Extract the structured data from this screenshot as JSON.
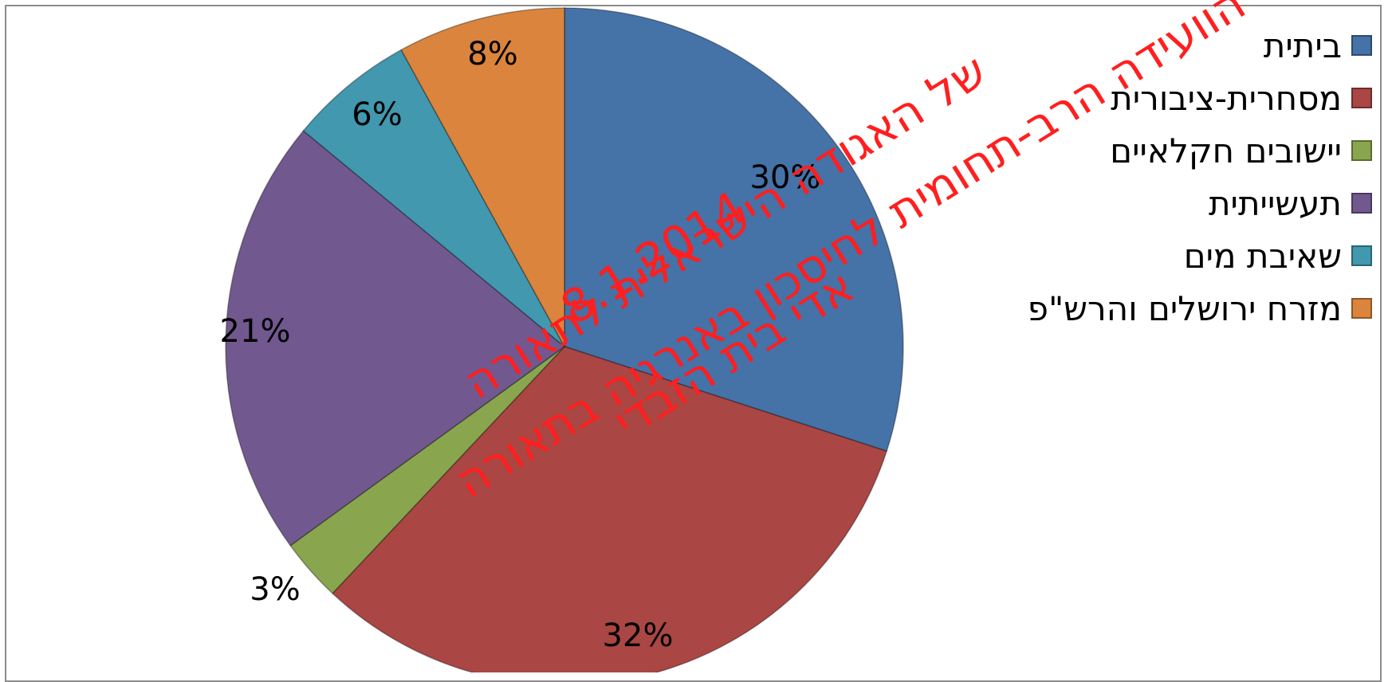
{
  "chart_data": {
    "type": "pie",
    "categories": [
      "ביתית",
      "מסחרית-ציבורית",
      "יישובים חקלאיים",
      "תעשייתית",
      "שאיבת מים",
      "מזרח ירושלים והרש\"פ"
    ],
    "values": [
      30,
      32,
      3,
      21,
      6,
      8
    ],
    "labels": [
      "30%",
      "32%",
      "3%",
      "21%",
      "6%",
      "8%"
    ],
    "colors": [
      "#4572A7",
      "#AA4643",
      "#89A54E",
      "#71588F",
      "#4198AF",
      "#DB843D"
    ],
    "start_angle_deg": 0,
    "direction": "clockwise",
    "legend_position": "right"
  },
  "watermark": {
    "lines": [
      "הוועידה הרב-תחומית לחיסכון באנרגיה בתאורה",
      "של האגודה הישראלית לתאורה",
      "8.1.2014",
      "אדי בית הזבדי"
    ],
    "color": "#ff1f1f"
  }
}
